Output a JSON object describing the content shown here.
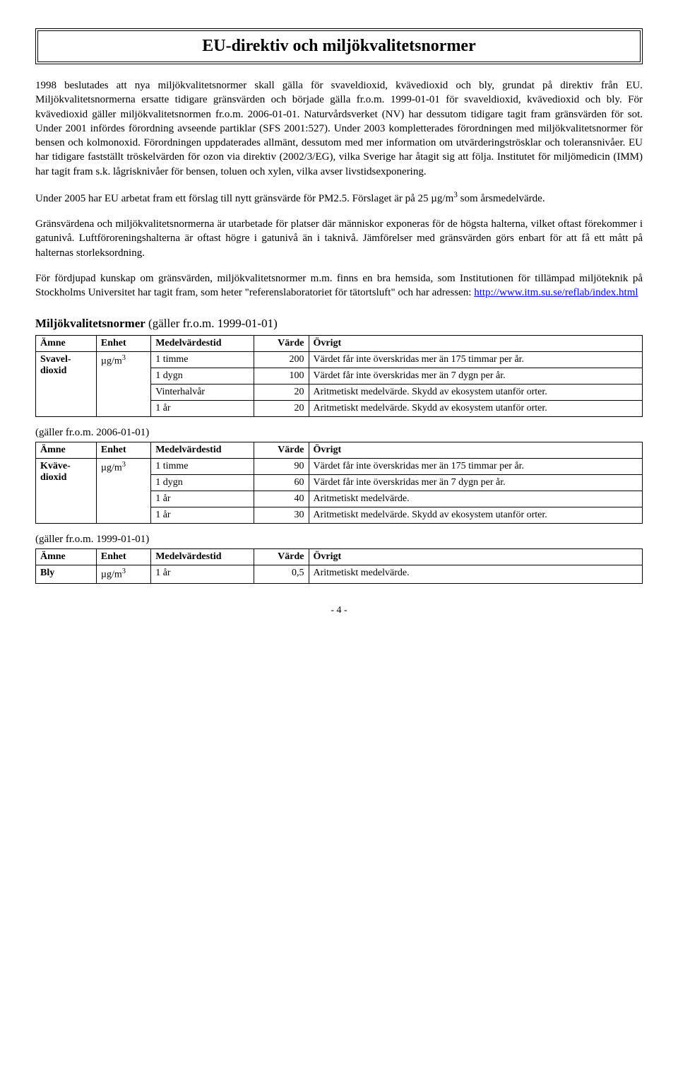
{
  "title": "EU-direktiv och miljökvalitetsnormer",
  "para1": "1998 beslutades att nya miljökvalitetsnormer skall gälla för svaveldioxid, kvävedioxid och bly, grundat på direktiv från EU. Miljökvalitetsnormerna ersatte tidigare gränsvärden och började gälla fr.o.m. 1999-01-01 för svaveldioxid, kvävedioxid och bly. För kvävedioxid gäller miljökvalitetsnormen fr.o.m. 2006-01-01. Naturvårdsverket (NV) har dessutom tidigare tagit fram gränsvärden för sot. Under 2001 infördes förordning avseende partiklar (SFS 2001:527). Under 2003 kompletterades förordningen med miljökvalitetsnormer för bensen och kolmonoxid. Förordningen uppdaterades allmänt, dessutom med mer information om utvärderingströsklar och toleransnivåer. EU har tidigare fastställt tröskelvärden för ozon via direktiv (2002/3/EG), vilka Sverige har åtagit sig att följa. Institutet för miljömedicin (IMM) har tagit fram s.k. lågrisknivåer för bensen, toluen och xylen, vilka avser livstidsexponering.",
  "para2_a": "Under 2005 har EU arbetat fram ett förslag till nytt gränsvärde för PM2.5. Förslaget är på 25 µg/m",
  "para2_b": " som årsmedelvärde.",
  "para3": "Gränsvärdena och miljökvalitetsnormerna är utarbetade för platser där människor exponeras för de högsta halterna, vilket oftast förekommer i gatunivå. Luftföroreningshalterna är oftast högre i gatunivå än i taknivå. Jämförelser med gränsvärden görs enbart för att få ett mått på halternas storleksordning.",
  "para4_a": "För fördjupad kunskap om gränsvärden, miljökvalitetsnormer m.m. finns en bra hemsida, som Institutionen för tillämpad miljöteknik på Stockholms Universitet har tagit fram, som heter \"referenslaboratoriet för tätortsluft\" och har adressen: ",
  "para4_link": "http://www.itm.su.se/reflab/index.html",
  "section_heading_a": "Miljökvalitetsnormer",
  "section_heading_b": " (gäller fr.o.m. 1999-01-01)",
  "headers": {
    "amne": "Ämne",
    "enhet": "Enhet",
    "tid": "Medelvärdestid",
    "varde": "Värde",
    "ovrigt": "Övrigt"
  },
  "unit_html": "µg/m",
  "table1": {
    "substance": "Svavel-dioxid",
    "rows": [
      {
        "tid": "1 timme",
        "varde": "200",
        "ovrigt": "Värdet får inte överskridas mer än 175 timmar per år."
      },
      {
        "tid": "1 dygn",
        "varde": "100",
        "ovrigt": "Värdet får inte överskridas mer än 7 dygn per år."
      },
      {
        "tid": "Vinterhalvår",
        "varde": "20",
        "ovrigt": "Aritmetiskt medelvärde. Skydd av ekosystem utanför orter."
      },
      {
        "tid": "1 år",
        "varde": "20",
        "ovrigt": "Aritmetiskt medelvärde. Skydd av ekosystem utanför orter."
      }
    ]
  },
  "sub2": "(gäller fr.o.m. 2006-01-01)",
  "table2": {
    "substance": "Kväve-dioxid",
    "rows": [
      {
        "tid": "1 timme",
        "varde": "90",
        "ovrigt": "Värdet får inte överskridas mer än 175 timmar per år."
      },
      {
        "tid": "1 dygn",
        "varde": "60",
        "ovrigt": "Värdet får inte överskridas mer än 7 dygn per år."
      },
      {
        "tid": "1 år",
        "varde": "40",
        "ovrigt": "Aritmetiskt medelvärde."
      },
      {
        "tid": "1 år",
        "varde": "30",
        "ovrigt": "Aritmetiskt medelvärde. Skydd av ekosystem utanför orter."
      }
    ]
  },
  "sub3": "(gäller fr.o.m. 1999-01-01)",
  "table3": {
    "substance": "Bly",
    "rows": [
      {
        "tid": "1 år",
        "varde": "0,5",
        "ovrigt": "Aritmetiskt medelvärde."
      }
    ]
  },
  "page_num": "- 4 -"
}
